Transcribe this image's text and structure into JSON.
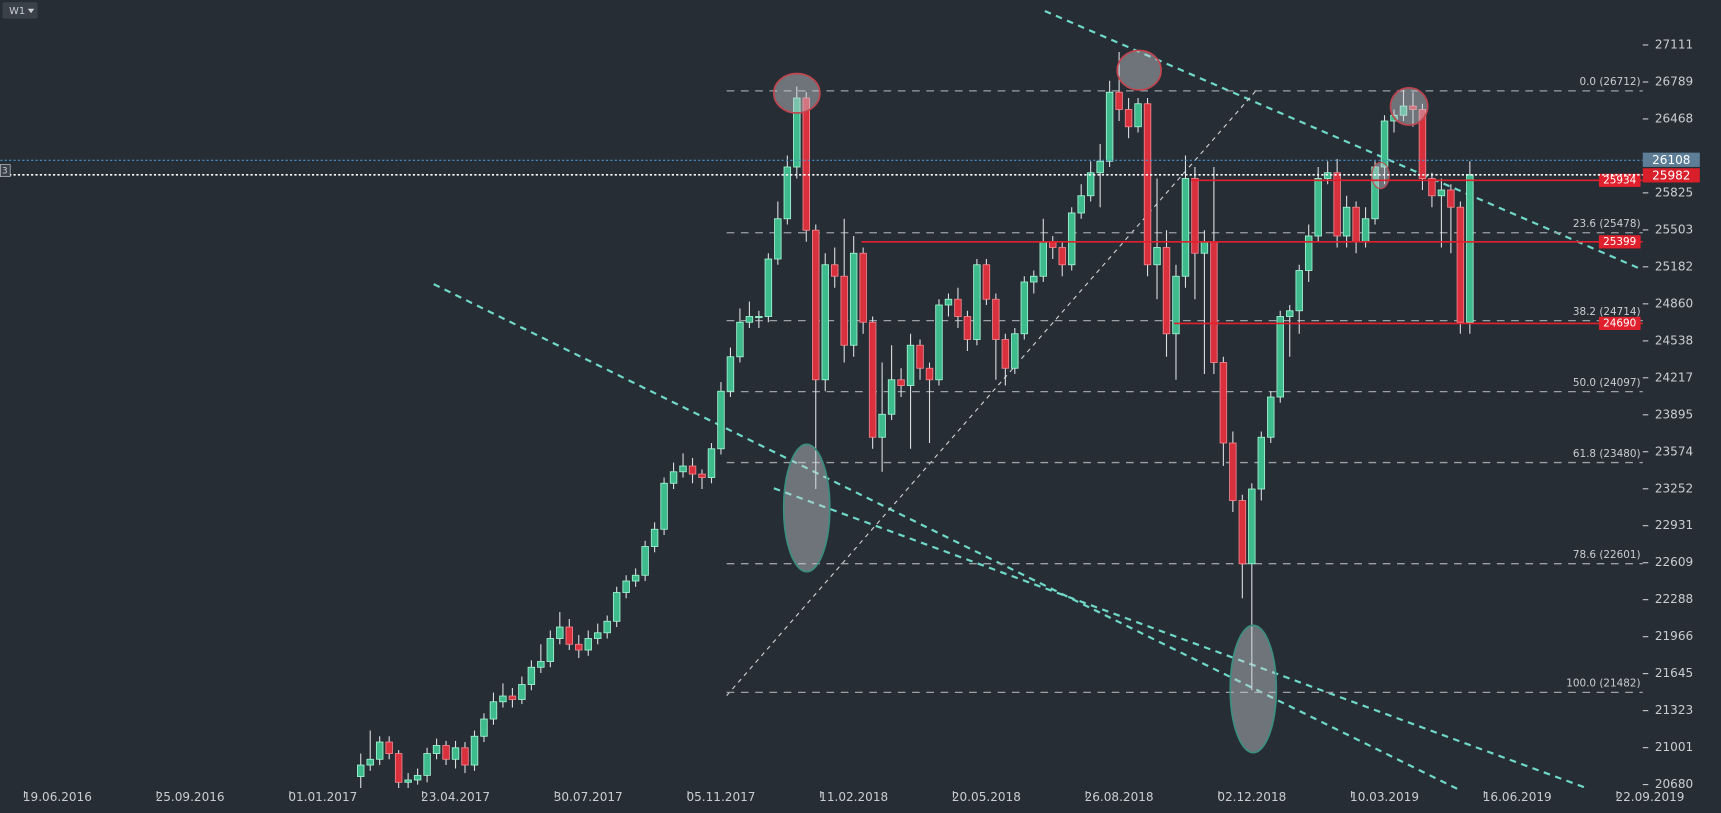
{
  "chart_data": {
    "type": "candlestick",
    "timeframe": "W1",
    "left_marker": "3",
    "x": [
      32,
      33,
      34,
      35,
      36,
      37,
      38,
      39,
      40,
      41,
      42,
      43,
      44,
      45,
      46,
      47,
      48,
      49,
      50,
      51,
      52,
      53,
      54,
      55,
      56,
      57,
      58,
      59,
      60,
      61,
      62,
      63,
      64,
      65,
      66,
      67,
      68,
      69,
      70,
      71,
      72,
      73,
      74,
      75,
      76,
      77,
      78,
      79,
      80,
      81,
      82,
      83,
      84,
      85,
      86,
      87,
      88,
      89,
      90,
      91,
      92,
      93,
      94,
      95,
      96,
      97,
      98,
      99,
      100,
      101,
      102,
      103,
      104,
      105,
      106,
      107,
      108,
      109,
      110,
      111,
      112,
      113,
      114,
      115,
      116,
      117,
      118,
      119,
      120,
      121,
      122,
      123,
      124,
      125,
      126,
      127,
      128,
      129,
      130,
      131,
      132,
      133,
      134,
      135,
      136,
      137,
      138,
      139,
      140,
      141,
      142,
      143,
      144,
      145,
      146,
      147,
      148,
      149
    ],
    "open": [
      20750,
      20850,
      20900,
      21050,
      20950,
      20700,
      20720,
      20760,
      20950,
      21020,
      20900,
      21000,
      20850,
      21100,
      21250,
      21400,
      21450,
      21420,
      21550,
      21700,
      21750,
      21950,
      22050,
      21900,
      21850,
      21950,
      22000,
      22100,
      22350,
      22450,
      22500,
      22750,
      22900,
      23300,
      23400,
      23450,
      23380,
      23350,
      23600,
      24100,
      24400,
      24700,
      24750,
      24750,
      25250,
      25600,
      26050,
      26650,
      25500,
      24200,
      25200,
      25100,
      24500,
      25300,
      24700,
      23700,
      23900,
      24200,
      24150,
      24500,
      24300,
      24200,
      24850,
      24900,
      24750,
      24550,
      25200,
      24900,
      24550,
      24300,
      24600,
      25050,
      25100,
      25400,
      25350,
      25200,
      25650,
      25800,
      26000,
      26100,
      26700,
      26550,
      26400,
      26600,
      25200,
      25350,
      24600,
      25100,
      25950,
      25300,
      25400,
      24350,
      23650,
      23150,
      22600,
      23250,
      23700,
      24050,
      24750,
      24800,
      25150,
      25450,
      25950,
      26000,
      25450,
      25700,
      25400,
      25600,
      26050,
      26450,
      26500,
      26580,
      26550,
      25950,
      25800,
      25850,
      25700,
      24700
    ],
    "high": [
      20950,
      21150,
      21100,
      21100,
      20980,
      20780,
      20820,
      21000,
      21080,
      21060,
      21060,
      21050,
      21150,
      21300,
      21480,
      21560,
      21520,
      21620,
      21760,
      21900,
      22020,
      22180,
      22120,
      21980,
      22020,
      22080,
      22150,
      22400,
      22500,
      22560,
      22800,
      22960,
      23350,
      23480,
      23560,
      23520,
      23420,
      23650,
      24180,
      24480,
      24820,
      24880,
      24800,
      25300,
      25750,
      26150,
      26750,
      26700,
      25550,
      25300,
      25350,
      25600,
      25450,
      25350,
      24750,
      24350,
      24500,
      24300,
      24600,
      24550,
      24350,
      24900,
      24950,
      25000,
      24800,
      25250,
      25250,
      24950,
      24600,
      24650,
      25100,
      25150,
      25600,
      25450,
      25400,
      25700,
      25900,
      26100,
      26250,
      26800,
      27050,
      26650,
      26650,
      26650,
      25950,
      25500,
      25200,
      26150,
      26050,
      25500,
      26050,
      24400,
      23750,
      23200,
      23300,
      23750,
      24100,
      24800,
      24850,
      25200,
      25550,
      26050,
      26100,
      26120,
      25800,
      25750,
      25700,
      26100,
      26500,
      26550,
      26720,
      26700,
      26600,
      26000,
      25950,
      25900,
      25750,
      26100
    ],
    "low": [
      20650,
      20800,
      20850,
      20900,
      20650,
      20650,
      20680,
      20700,
      20900,
      20850,
      20820,
      20780,
      20800,
      21050,
      21200,
      21350,
      21350,
      21380,
      21500,
      21650,
      21700,
      21900,
      21850,
      21780,
      21800,
      21900,
      21950,
      22050,
      22300,
      22400,
      22450,
      22700,
      22850,
      23250,
      23350,
      23300,
      23250,
      23300,
      23550,
      24050,
      24350,
      24650,
      24650,
      24700,
      25200,
      25550,
      25950,
      25400,
      23250,
      24100,
      25000,
      24350,
      24400,
      24600,
      23600,
      23400,
      23850,
      24050,
      23600,
      24200,
      23650,
      24150,
      24750,
      24650,
      24450,
      24500,
      24850,
      24200,
      24150,
      24250,
      24550,
      24950,
      25050,
      25250,
      25100,
      25150,
      25600,
      25750,
      25700,
      26050,
      26450,
      26300,
      26350,
      25100,
      24900,
      24400,
      24200,
      25000,
      24900,
      24250,
      24250,
      23450,
      23050,
      22300,
      21500,
      23150,
      23650,
      24000,
      24400,
      24600,
      25050,
      25400,
      25900,
      25350,
      25350,
      25300,
      25350,
      25550,
      25900,
      26350,
      26450,
      26400,
      25850,
      25700,
      25350,
      25300,
      24600,
      24600
    ],
    "close": [
      20850,
      20900,
      21050,
      20950,
      20700,
      20720,
      20760,
      20950,
      21020,
      20900,
      21000,
      20850,
      21100,
      21250,
      21400,
      21450,
      21420,
      21550,
      21700,
      21750,
      21950,
      22050,
      21900,
      21850,
      21950,
      22000,
      22100,
      22350,
      22450,
      22500,
      22750,
      22900,
      23300,
      23400,
      23450,
      23380,
      23350,
      23600,
      24100,
      24400,
      24700,
      24750,
      24750,
      25250,
      25600,
      26050,
      26650,
      25500,
      24200,
      25200,
      25100,
      24500,
      25300,
      24700,
      23700,
      23900,
      24200,
      24150,
      24500,
      24300,
      24200,
      24850,
      24900,
      24750,
      24550,
      25200,
      24900,
      24550,
      24300,
      24600,
      25050,
      25100,
      25400,
      25350,
      25200,
      25650,
      25800,
      26000,
      26100,
      26700,
      26550,
      26400,
      26600,
      25200,
      25350,
      24600,
      25100,
      25950,
      25300,
      25400,
      24350,
      23650,
      23150,
      22600,
      23250,
      23700,
      24050,
      24750,
      24800,
      25150,
      25450,
      25950,
      26000,
      25450,
      25700,
      25400,
      25600,
      26050,
      26450,
      26500,
      26580,
      26550,
      25950,
      25800,
      25850,
      25700,
      24700,
      25982
    ],
    "up_color": "#3dbb8c",
    "down_color": "#d9303e",
    "xlim": [
      -6.02,
      175.46
    ],
    "xticks": [
      {
        "value": 0,
        "label": "19.06.2016"
      },
      {
        "value": 14,
        "label": "25.09.2016"
      },
      {
        "value": 28,
        "label": "01.01.2017"
      },
      {
        "value": 42,
        "label": "23.04.2017"
      },
      {
        "value": 56,
        "label": "30.07.2017"
      },
      {
        "value": 70,
        "label": "05.11.2017"
      },
      {
        "value": 84,
        "label": "11.02.2018"
      },
      {
        "value": 98,
        "label": "20.05.2018"
      },
      {
        "value": 112,
        "label": "26.08.2018"
      },
      {
        "value": 126,
        "label": "02.12.2018"
      },
      {
        "value": 140,
        "label": "10.03.2019"
      },
      {
        "value": 154,
        "label": "16.06.2019"
      },
      {
        "value": 168,
        "label": "22.09.2019"
      }
    ],
    "ylim": [
      20433,
      27502
    ],
    "yticks": [
      27111,
      26789,
      26468,
      25825,
      25503,
      25182,
      24860,
      24538,
      24217,
      23895,
      23574,
      23252,
      22931,
      22609,
      22288,
      21966,
      21645,
      21323,
      21001,
      20680
    ],
    "fib_levels": [
      {
        "value": 26712,
        "label": "0.0 (26712)"
      },
      {
        "value": 25478,
        "label": "23.6 (25478)"
      },
      {
        "value": 24714,
        "label": "38.2 (24714)"
      },
      {
        "value": 24097,
        "label": "50.0 (24097)"
      },
      {
        "value": 23480,
        "label": "61.8 (23480)"
      },
      {
        "value": 22601,
        "label": "78.6 (22601)"
      },
      {
        "value": 21482,
        "label": "100.0 (21482)"
      }
    ],
    "fib_start": 70.6,
    "price_lines": [
      {
        "value": 25934,
        "start": 119.6
      },
      {
        "value": 25399,
        "start": 84.8
      },
      {
        "value": 24690,
        "start": 117.8
      }
    ],
    "ask": 26108,
    "bid": 25982
  }
}
